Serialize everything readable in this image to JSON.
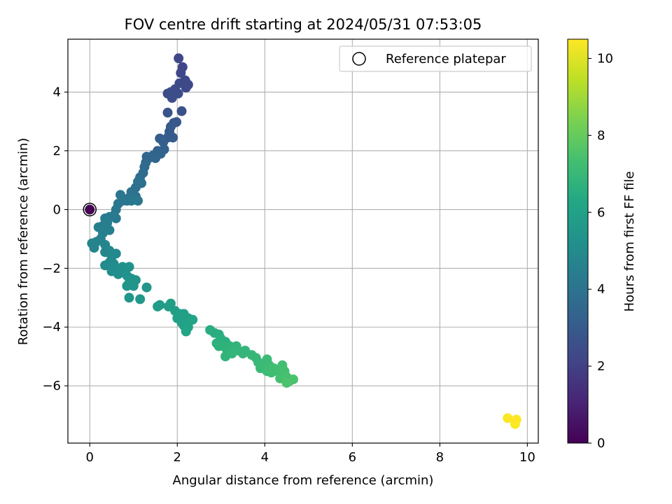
{
  "chart_data": {
    "type": "scatter",
    "title": "FOV centre drift starting at 2024/05/31 07:53:05",
    "xlabel": "Angular distance from reference (arcmin)",
    "ylabel": "Rotation from reference (arcmin)",
    "xlim": [
      -0.5,
      10.25
    ],
    "ylim": [
      -7.95,
      5.8
    ],
    "xticks": [
      0,
      2,
      4,
      6,
      8,
      10
    ],
    "yticks": [
      -6,
      -4,
      -2,
      0,
      2,
      4
    ],
    "grid": true,
    "legend": {
      "placement": "top-right",
      "entries": [
        "Reference platepar"
      ]
    },
    "colorbar": {
      "label": "Hours from first FF file",
      "range": [
        0,
        10.5
      ],
      "ticks": [
        0,
        2,
        4,
        6,
        8,
        10
      ],
      "colormap": "viridis"
    },
    "reference_point": {
      "x": 0,
      "y": 0
    },
    "points": [
      [
        0.0,
        0.0,
        0.0
      ],
      [
        2.03,
        5.15,
        2.2
      ],
      [
        2.12,
        4.85,
        2.2
      ],
      [
        2.08,
        4.65,
        2.25
      ],
      [
        2.18,
        4.4,
        2.3
      ],
      [
        2.25,
        4.25,
        2.3
      ],
      [
        2.2,
        4.15,
        2.35
      ],
      [
        2.05,
        4.3,
        2.35
      ],
      [
        1.95,
        4.1,
        2.4
      ],
      [
        1.85,
        4.0,
        2.4
      ],
      [
        2.02,
        3.95,
        2.45
      ],
      [
        1.78,
        3.95,
        2.5
      ],
      [
        1.88,
        3.8,
        2.5
      ],
      [
        2.1,
        3.35,
        2.6
      ],
      [
        1.78,
        3.3,
        2.7
      ],
      [
        1.92,
        2.95,
        2.8
      ],
      [
        1.98,
        2.98,
        2.85
      ],
      [
        1.85,
        2.82,
        2.9
      ],
      [
        1.82,
        2.65,
        2.95
      ],
      [
        1.78,
        2.45,
        3.0
      ],
      [
        1.9,
        2.45,
        3.0
      ],
      [
        1.6,
        2.42,
        3.1
      ],
      [
        1.68,
        2.3,
        3.15
      ],
      [
        1.7,
        2.05,
        3.2
      ],
      [
        1.55,
        2.0,
        3.3
      ],
      [
        1.62,
        1.9,
        3.35
      ],
      [
        1.45,
        1.85,
        3.4
      ],
      [
        1.5,
        1.75,
        3.45
      ],
      [
        1.35,
        1.75,
        3.5
      ],
      [
        1.3,
        1.8,
        3.5
      ],
      [
        1.28,
        1.6,
        3.55
      ],
      [
        1.25,
        1.45,
        3.6
      ],
      [
        1.22,
        1.25,
        3.7
      ],
      [
        1.15,
        1.1,
        3.75
      ],
      [
        1.18,
        0.9,
        3.8
      ],
      [
        1.05,
        0.75,
        3.85
      ],
      [
        1.1,
        0.95,
        3.9
      ],
      [
        0.95,
        0.6,
        3.95
      ],
      [
        0.9,
        0.4,
        4.0
      ],
      [
        0.85,
        0.3,
        4.05
      ],
      [
        1.05,
        0.45,
        4.05
      ],
      [
        0.75,
        0.3,
        4.1
      ],
      [
        0.7,
        0.5,
        4.1
      ],
      [
        0.65,
        0.2,
        4.15
      ],
      [
        1.1,
        0.3,
        4.15
      ],
      [
        0.95,
        0.3,
        4.2
      ],
      [
        0.6,
        0.0,
        4.2
      ],
      [
        0.55,
        -0.2,
        4.25
      ],
      [
        0.45,
        -0.25,
        4.3
      ],
      [
        0.6,
        -0.3,
        4.3
      ],
      [
        0.35,
        -0.3,
        4.35
      ],
      [
        0.4,
        -0.45,
        4.4
      ],
      [
        0.3,
        -0.55,
        4.45
      ],
      [
        0.45,
        -0.7,
        4.5
      ],
      [
        0.2,
        -0.6,
        4.5
      ],
      [
        0.3,
        -0.8,
        4.55
      ],
      [
        0.25,
        -1.0,
        4.6
      ],
      [
        0.15,
        -1.1,
        4.65
      ],
      [
        0.05,
        -1.15,
        4.7
      ],
      [
        0.1,
        -1.3,
        4.7
      ],
      [
        0.35,
        -1.2,
        4.75
      ],
      [
        0.35,
        -1.45,
        4.8
      ],
      [
        0.45,
        -1.4,
        4.85
      ],
      [
        0.6,
        -1.5,
        4.9
      ],
      [
        0.5,
        -1.6,
        4.9
      ],
      [
        0.45,
        -1.8,
        4.95
      ],
      [
        0.55,
        -1.85,
        5.0
      ],
      [
        0.35,
        -1.9,
        5.0
      ],
      [
        0.6,
        -2.0,
        5.05
      ],
      [
        0.5,
        -2.1,
        5.1
      ],
      [
        0.7,
        -2.05,
        5.15
      ],
      [
        0.65,
        -2.2,
        5.15
      ],
      [
        0.8,
        -2.1,
        5.2
      ],
      [
        0.75,
        -1.95,
        5.2
      ],
      [
        0.9,
        -1.95,
        5.25
      ],
      [
        0.85,
        -2.25,
        5.3
      ],
      [
        0.95,
        -2.35,
        5.3
      ],
      [
        1.05,
        -2.4,
        5.35
      ],
      [
        0.9,
        -2.5,
        5.4
      ],
      [
        1.0,
        -2.6,
        5.4
      ],
      [
        0.85,
        -2.6,
        5.45
      ],
      [
        1.3,
        -2.65,
        5.5
      ],
      [
        0.9,
        -3.0,
        5.5
      ],
      [
        1.15,
        -3.05,
        5.55
      ],
      [
        1.6,
        -3.25,
        5.7
      ],
      [
        1.55,
        -3.3,
        5.75
      ],
      [
        1.8,
        -3.3,
        5.8
      ],
      [
        1.85,
        -3.2,
        5.85
      ],
      [
        1.95,
        -3.45,
        5.85
      ],
      [
        2.05,
        -3.55,
        5.9
      ],
      [
        2.15,
        -3.55,
        5.9
      ],
      [
        2.0,
        -3.7,
        5.95
      ],
      [
        2.25,
        -3.7,
        5.95
      ],
      [
        2.1,
        -3.85,
        6.0
      ],
      [
        2.15,
        -3.95,
        6.0
      ],
      [
        2.25,
        -4.0,
        6.05
      ],
      [
        2.2,
        -4.15,
        6.1
      ],
      [
        2.35,
        -3.75,
        6.1
      ],
      [
        2.75,
        -4.1,
        6.5
      ],
      [
        2.85,
        -4.2,
        6.5
      ],
      [
        2.95,
        -4.25,
        6.55
      ],
      [
        3.0,
        -4.4,
        6.6
      ],
      [
        3.1,
        -4.5,
        6.6
      ],
      [
        2.9,
        -4.55,
        6.65
      ],
      [
        2.95,
        -4.65,
        6.7
      ],
      [
        3.1,
        -4.7,
        6.7
      ],
      [
        3.2,
        -4.65,
        6.75
      ],
      [
        3.15,
        -4.85,
        6.75
      ],
      [
        3.1,
        -5.0,
        6.8
      ],
      [
        3.35,
        -4.65,
        6.8
      ],
      [
        3.4,
        -4.8,
        6.85
      ],
      [
        3.25,
        -4.9,
        6.85
      ],
      [
        3.55,
        -4.8,
        6.9
      ],
      [
        3.5,
        -4.9,
        6.9
      ],
      [
        3.7,
        -4.95,
        6.95
      ],
      [
        3.8,
        -5.05,
        7.0
      ],
      [
        3.85,
        -5.2,
        7.0
      ],
      [
        3.9,
        -5.4,
        7.05
      ],
      [
        4.0,
        -5.25,
        7.1
      ],
      [
        4.05,
        -5.1,
        7.1
      ],
      [
        4.1,
        -5.3,
        7.15
      ],
      [
        4.05,
        -5.5,
        7.15
      ],
      [
        4.15,
        -5.55,
        7.2
      ],
      [
        4.2,
        -5.4,
        7.25
      ],
      [
        4.3,
        -5.45,
        7.25
      ],
      [
        4.35,
        -5.6,
        7.3
      ],
      [
        4.4,
        -5.3,
        7.3
      ],
      [
        4.45,
        -5.5,
        7.35
      ],
      [
        4.35,
        -5.75,
        7.35
      ],
      [
        4.5,
        -5.7,
        7.4
      ],
      [
        4.55,
        -5.85,
        7.45
      ],
      [
        4.65,
        -5.78,
        7.45
      ],
      [
        4.5,
        -5.9,
        7.5
      ],
      [
        9.55,
        -7.1,
        10.45
      ],
      [
        9.72,
        -7.3,
        10.45
      ],
      [
        9.75,
        -7.15,
        10.5
      ]
    ]
  }
}
